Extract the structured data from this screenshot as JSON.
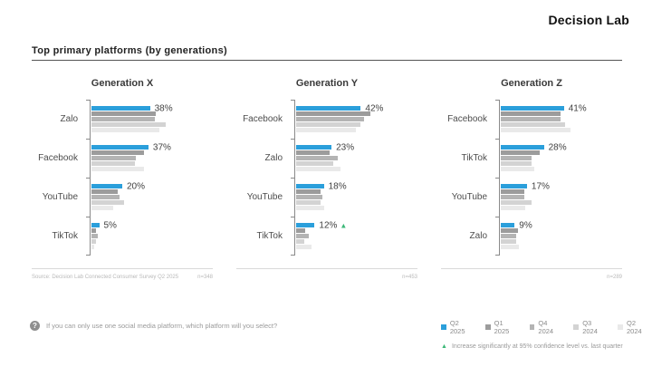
{
  "header": {
    "brand": "Decision Lab"
  },
  "title": "Top primary platforms (by generations)",
  "question": {
    "icon": "question-circle-icon",
    "text": "If you can only use one social media platform, which platform will you select?"
  },
  "legend": {
    "items": [
      {
        "label": "Q2 2025",
        "color": "#2B9FDB"
      },
      {
        "label": "Q1 2025",
        "color": "#9C9C9C"
      },
      {
        "label": "Q4 2024",
        "color": "#B4B4B4"
      },
      {
        "label": "Q3 2024",
        "color": "#D3D3D3"
      },
      {
        "label": "Q2 2024",
        "color": "#E9E9E9"
      }
    ],
    "note": {
      "marker": "▲",
      "marker_color": "#3CB878",
      "text": "Increase significantly at 95% confidence level vs. last quarter"
    }
  },
  "chart_data": [
    {
      "type": "bar",
      "orientation": "horizontal",
      "title": "Generation X",
      "source": "Source: Decision Lab Connected Consumer Survey Q2 2025",
      "sample": "n=348",
      "categories": [
        "Zalo",
        "Facebook",
        "YouTube",
        "TikTok"
      ],
      "series": [
        {
          "name": "Q2 2025",
          "color": "#2B9FDB",
          "values": [
            38,
            37,
            20,
            5
          ]
        },
        {
          "name": "Q1 2025",
          "color": "#9C9C9C",
          "values": [
            42,
            34,
            17,
            3
          ]
        },
        {
          "name": "Q4 2024",
          "color": "#B4B4B4",
          "values": [
            41,
            29,
            18,
            4
          ]
        },
        {
          "name": "Q3 2024",
          "color": "#D3D3D3",
          "values": [
            48,
            28,
            21,
            3
          ]
        },
        {
          "name": "Q2 2024",
          "color": "#E9E9E9",
          "values": [
            44,
            34,
            14,
            2
          ]
        }
      ],
      "labels": [
        "38%",
        "37%",
        "20%",
        "5%"
      ],
      "markers": [
        null,
        null,
        null,
        null
      ],
      "xlim": [
        0,
        55
      ],
      "grid": false,
      "legend_position": "bottom-right"
    },
    {
      "type": "bar",
      "orientation": "horizontal",
      "title": "Generation Y",
      "source": "",
      "sample": "n=453",
      "categories": [
        "Facebook",
        "Zalo",
        "YouTube",
        "TikTok"
      ],
      "series": [
        {
          "name": "Q2 2025",
          "color": "#2B9FDB",
          "values": [
            42,
            23,
            18,
            12
          ]
        },
        {
          "name": "Q1 2025",
          "color": "#9C9C9C",
          "values": [
            48,
            22,
            16,
            6
          ]
        },
        {
          "name": "Q4 2024",
          "color": "#B4B4B4",
          "values": [
            44,
            27,
            17,
            8
          ]
        },
        {
          "name": "Q3 2024",
          "color": "#D3D3D3",
          "values": [
            42,
            24,
            16,
            5
          ]
        },
        {
          "name": "Q2 2024",
          "color": "#E9E9E9",
          "values": [
            39,
            29,
            18,
            10
          ]
        }
      ],
      "labels": [
        "42%",
        "23%",
        "18%",
        "12%"
      ],
      "markers": [
        null,
        null,
        null,
        "▲"
      ],
      "xlim": [
        0,
        55
      ],
      "grid": false,
      "legend_position": "bottom-right"
    },
    {
      "type": "bar",
      "orientation": "horizontal",
      "title": "Generation Z",
      "source": "",
      "sample": "n=289",
      "categories": [
        "Facebook",
        "TikTok",
        "YouTube",
        "Zalo"
      ],
      "series": [
        {
          "name": "Q2 2025",
          "color": "#2B9FDB",
          "values": [
            41,
            28,
            17,
            9
          ]
        },
        {
          "name": "Q1 2025",
          "color": "#9C9C9C",
          "values": [
            39,
            25,
            15,
            11
          ]
        },
        {
          "name": "Q4 2024",
          "color": "#B4B4B4",
          "values": [
            39,
            20,
            15,
            10
          ]
        },
        {
          "name": "Q3 2024",
          "color": "#D3D3D3",
          "values": [
            42,
            20,
            20,
            10
          ]
        },
        {
          "name": "Q2 2024",
          "color": "#E9E9E9",
          "values": [
            45,
            22,
            16,
            12
          ]
        }
      ],
      "labels": [
        "41%",
        "28%",
        "17%",
        "9%"
      ],
      "markers": [
        null,
        null,
        null,
        null
      ],
      "xlim": [
        0,
        55
      ],
      "grid": false,
      "legend_position": "bottom-right"
    }
  ]
}
